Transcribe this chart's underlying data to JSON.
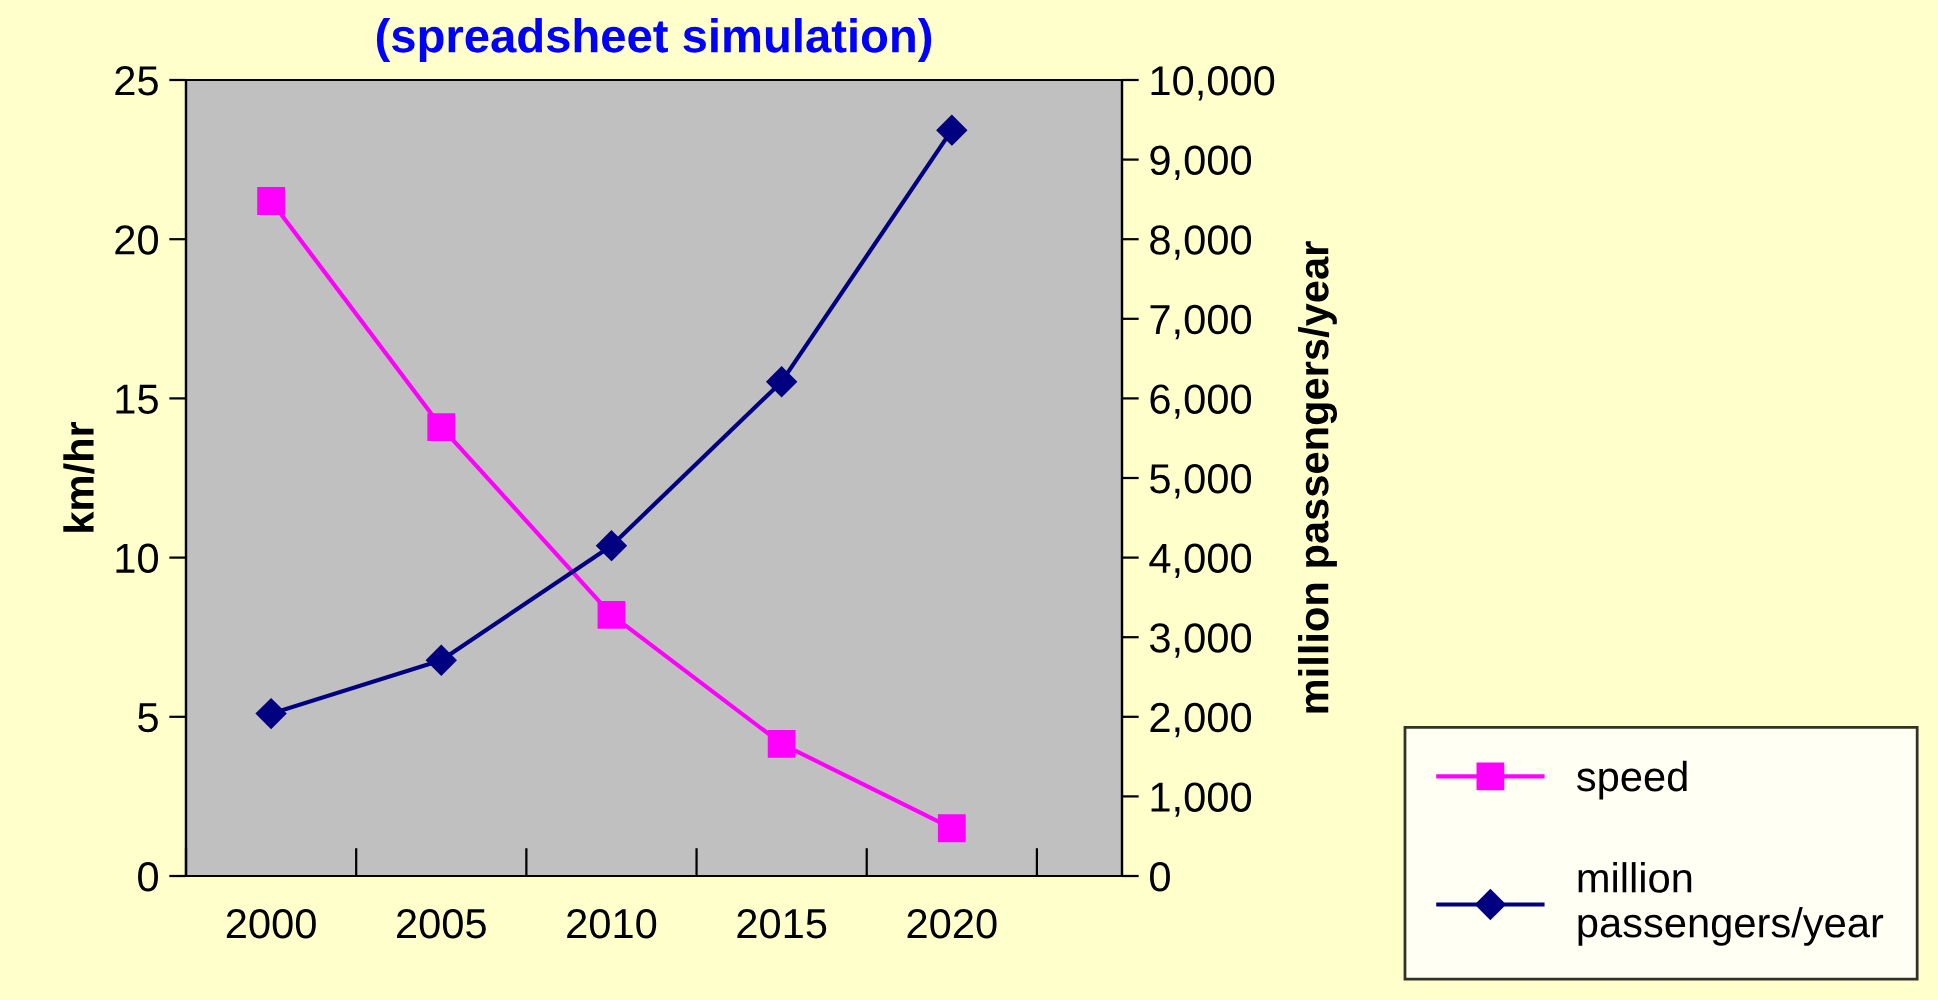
{
  "chart_data": {
    "type": "line",
    "title": "(spreadsheet simulation)",
    "ylabel": "km/hr",
    "y2label": "million passengers/year",
    "categories": [
      "2000",
      "2005",
      "2010",
      "2015",
      "2020"
    ],
    "series": [
      {
        "name": "speed",
        "color": "#ff00ff",
        "marker": "square",
        "values": [
          21.2,
          14.1,
          8.2,
          4.15,
          1.5
        ]
      },
      {
        "name": "million passengers/year",
        "color": "#000080",
        "marker": "diamond",
        "axis": "y2",
        "values": [
          2040,
          2710,
          4150,
          6210,
          9370
        ]
      }
    ],
    "ylim": [
      0,
      25
    ],
    "yticks": [
      0,
      5,
      10,
      15,
      20,
      25
    ],
    "y2lim": [
      0,
      10000
    ],
    "y2ticks": [
      0,
      {
        "value": 1000,
        "label": "1,000"
      },
      {
        "value": 2000,
        "label": "2,000"
      },
      {
        "value": 3000,
        "label": "3,000"
      },
      {
        "value": 4000,
        "label": "4,000"
      },
      {
        "value": 5000,
        "label": "5,000"
      },
      {
        "value": 6000,
        "label": "6,000"
      },
      {
        "value": 7000,
        "label": "7,000"
      },
      {
        "value": 8000,
        "label": "8,000"
      },
      {
        "value": 9000,
        "label": "9,000"
      },
      {
        "value": 10000,
        "label": "10,000"
      }
    ],
    "grid": false,
    "legend": "bottom right"
  }
}
